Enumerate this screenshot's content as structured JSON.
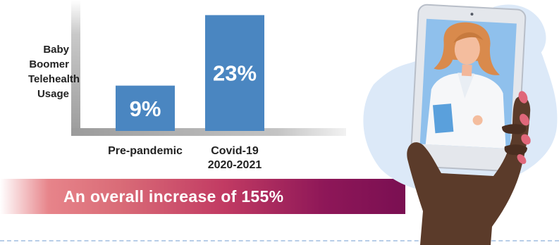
{
  "chart_data": {
    "type": "bar",
    "categories": [
      "Pre-pandemic",
      "Covid-19\n2020-2021"
    ],
    "values": [
      9,
      23
    ],
    "value_labels": [
      "9%",
      "23%"
    ],
    "ylabel": [
      "Baby",
      "Boomer",
      "Telehealth",
      "Usage"
    ],
    "xlabel": "",
    "title": "",
    "ylim": [
      0,
      26
    ],
    "grid": false,
    "bar_color": "#4a86c1"
  },
  "banner": {
    "text": "An overall increase of 155%",
    "color_end": "#7a0f52"
  },
  "illustration": {
    "icons": [
      "hand-icon",
      "smartphone-icon",
      "doctor-icon"
    ],
    "blob_color": "#dce9f8"
  }
}
